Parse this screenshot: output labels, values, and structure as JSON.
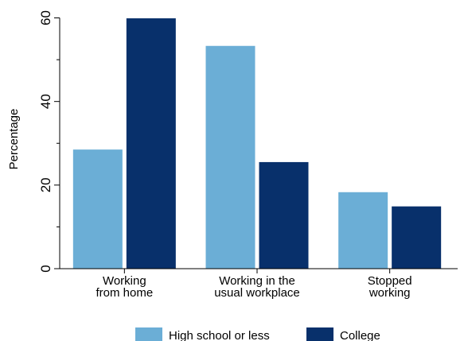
{
  "chart_data": {
    "type": "bar",
    "title": "",
    "xlabel": "",
    "ylabel": "Percentage",
    "ylim": [
      0,
      62
    ],
    "yticks": [
      0,
      20,
      40,
      60
    ],
    "categories": [
      [
        "Working",
        "from home"
      ],
      [
        "Working in the",
        "usual workplace"
      ],
      [
        "Stopped",
        "working"
      ]
    ],
    "series": [
      {
        "name": "High school or less",
        "color": "#6baed6",
        "values": [
          28.5,
          53.3,
          18.3
        ]
      },
      {
        "name": "College",
        "color": "#08306b",
        "values": [
          59.9,
          25.5,
          14.9
        ]
      }
    ],
    "legend_position": "bottom",
    "grid": false
  }
}
